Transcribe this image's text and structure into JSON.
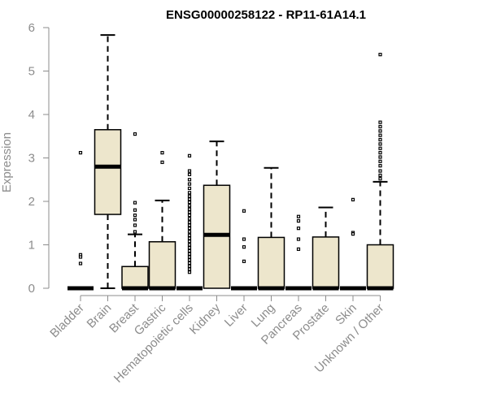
{
  "chart_data": {
    "type": "boxplot",
    "title": "ENSG00000258122 - RP11-61A14.1",
    "xlabel": "",
    "ylabel": "Expression",
    "ylim": [
      0,
      6
    ],
    "yticks": [
      0,
      1,
      2,
      3,
      4,
      5,
      6
    ],
    "grid": false,
    "box_color": "#ede6cc",
    "categories": [
      "Bladder",
      "Brain",
      "Breast",
      "Gastric",
      "Hematopoietic cells",
      "Kidney",
      "Liver",
      "Lung",
      "Pancreas",
      "Prostate",
      "Skin",
      "Unknown / Other"
    ],
    "boxes": [
      {
        "q1": 0,
        "median": 0,
        "q3": 0,
        "whisker_low": 0,
        "whisker_high": 0,
        "outliers": [
          3.12,
          0.77,
          0.72,
          0.57
        ]
      },
      {
        "q1": 1.7,
        "median": 2.8,
        "q3": 3.65,
        "whisker_low": 0,
        "whisker_high": 5.83,
        "outliers": []
      },
      {
        "q1": 0,
        "median": 0,
        "q3": 0.5,
        "whisker_low": 0,
        "whisker_high": 1.24,
        "outliers": [
          3.55,
          1.97,
          1.8,
          1.68,
          1.58,
          1.45,
          1.3
        ]
      },
      {
        "q1": 0,
        "median": 0,
        "q3": 1.07,
        "whisker_low": 0,
        "whisker_high": 2.02,
        "outliers": [
          3.12,
          2.9
        ]
      },
      {
        "q1": 0,
        "median": 0,
        "q3": 0,
        "whisker_low": 0,
        "whisker_high": 0,
        "outliers": [
          3.05,
          2.7,
          2.62,
          2.5,
          2.4,
          2.3,
          2.2,
          2.12,
          2.05,
          1.98,
          1.9,
          1.82,
          1.75,
          1.68,
          1.6,
          1.52,
          1.45,
          1.38,
          1.3,
          1.22,
          1.15,
          1.08,
          1.0,
          0.93,
          0.86,
          0.79,
          0.72,
          0.65,
          0.58,
          0.51,
          0.44,
          0.37
        ]
      },
      {
        "q1": 0,
        "median": 1.23,
        "q3": 2.37,
        "whisker_low": 0,
        "whisker_high": 3.38,
        "outliers": []
      },
      {
        "q1": 0,
        "median": 0,
        "q3": 0,
        "whisker_low": 0,
        "whisker_high": 0,
        "outliers": [
          1.78,
          1.13,
          0.95,
          0.62
        ]
      },
      {
        "q1": 0,
        "median": 0,
        "q3": 1.17,
        "whisker_low": 0,
        "whisker_high": 2.77,
        "outliers": []
      },
      {
        "q1": 0,
        "median": 0,
        "q3": 0,
        "whisker_low": 0,
        "whisker_high": 0,
        "outliers": [
          1.65,
          1.55,
          1.38,
          1.13,
          0.9
        ]
      },
      {
        "q1": 0,
        "median": 0,
        "q3": 1.18,
        "whisker_low": 0,
        "whisker_high": 1.86,
        "outliers": []
      },
      {
        "q1": 0,
        "median": 0,
        "q3": 0,
        "whisker_low": 0,
        "whisker_high": 0,
        "outliers": [
          2.04,
          1.28,
          1.25
        ]
      },
      {
        "q1": 0,
        "median": 0,
        "q3": 1.0,
        "whisker_low": 0,
        "whisker_high": 2.45,
        "outliers": [
          5.38,
          3.82,
          3.72,
          3.62,
          3.52,
          3.42,
          3.32,
          3.22,
          3.12,
          3.02,
          2.92,
          2.82,
          2.7,
          2.6,
          2.52
        ]
      }
    ]
  }
}
